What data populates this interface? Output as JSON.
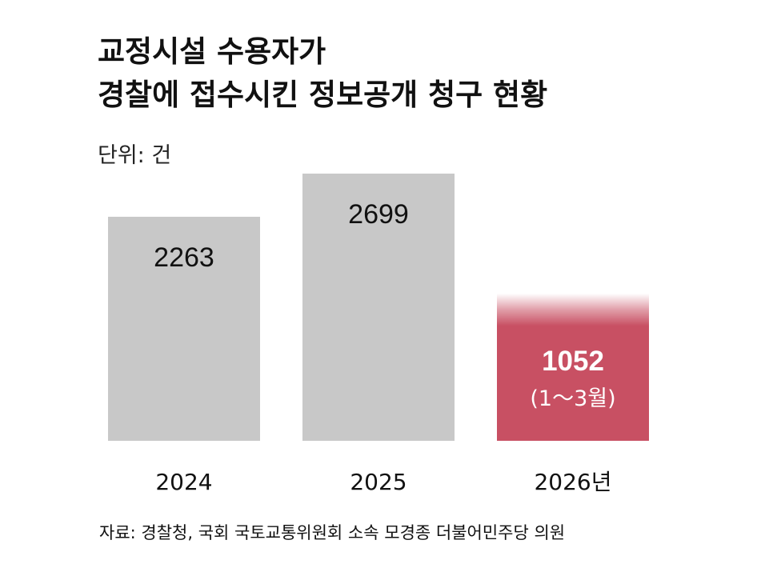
{
  "title": {
    "line1": "교정시설 수용자가",
    "line2": "경찰에 접수시킨 정보공개 청구 현황"
  },
  "unit_label": "단위: 건",
  "source": "자료: 경찰청, 국회 국토교통위원회 소속 모경종 더불어민주당 의원",
  "colors": {
    "bar_default": "#c8c8c8",
    "bar_highlight": "#c85063",
    "text_dark": "#111111",
    "text_on_highlight": "#ffffff"
  },
  "chart_data": {
    "type": "bar",
    "categories": [
      "2024",
      "2025",
      "2026년"
    ],
    "values": [
      2263,
      2699,
      1052
    ],
    "value_labels": [
      "2263",
      "2699",
      "1052"
    ],
    "value_sublabels": [
      "",
      "",
      "(1～3월)"
    ],
    "highlight_index": 2,
    "ylim": [
      0,
      2699
    ],
    "grid": false,
    "xlabel": "",
    "ylabel": ""
  }
}
